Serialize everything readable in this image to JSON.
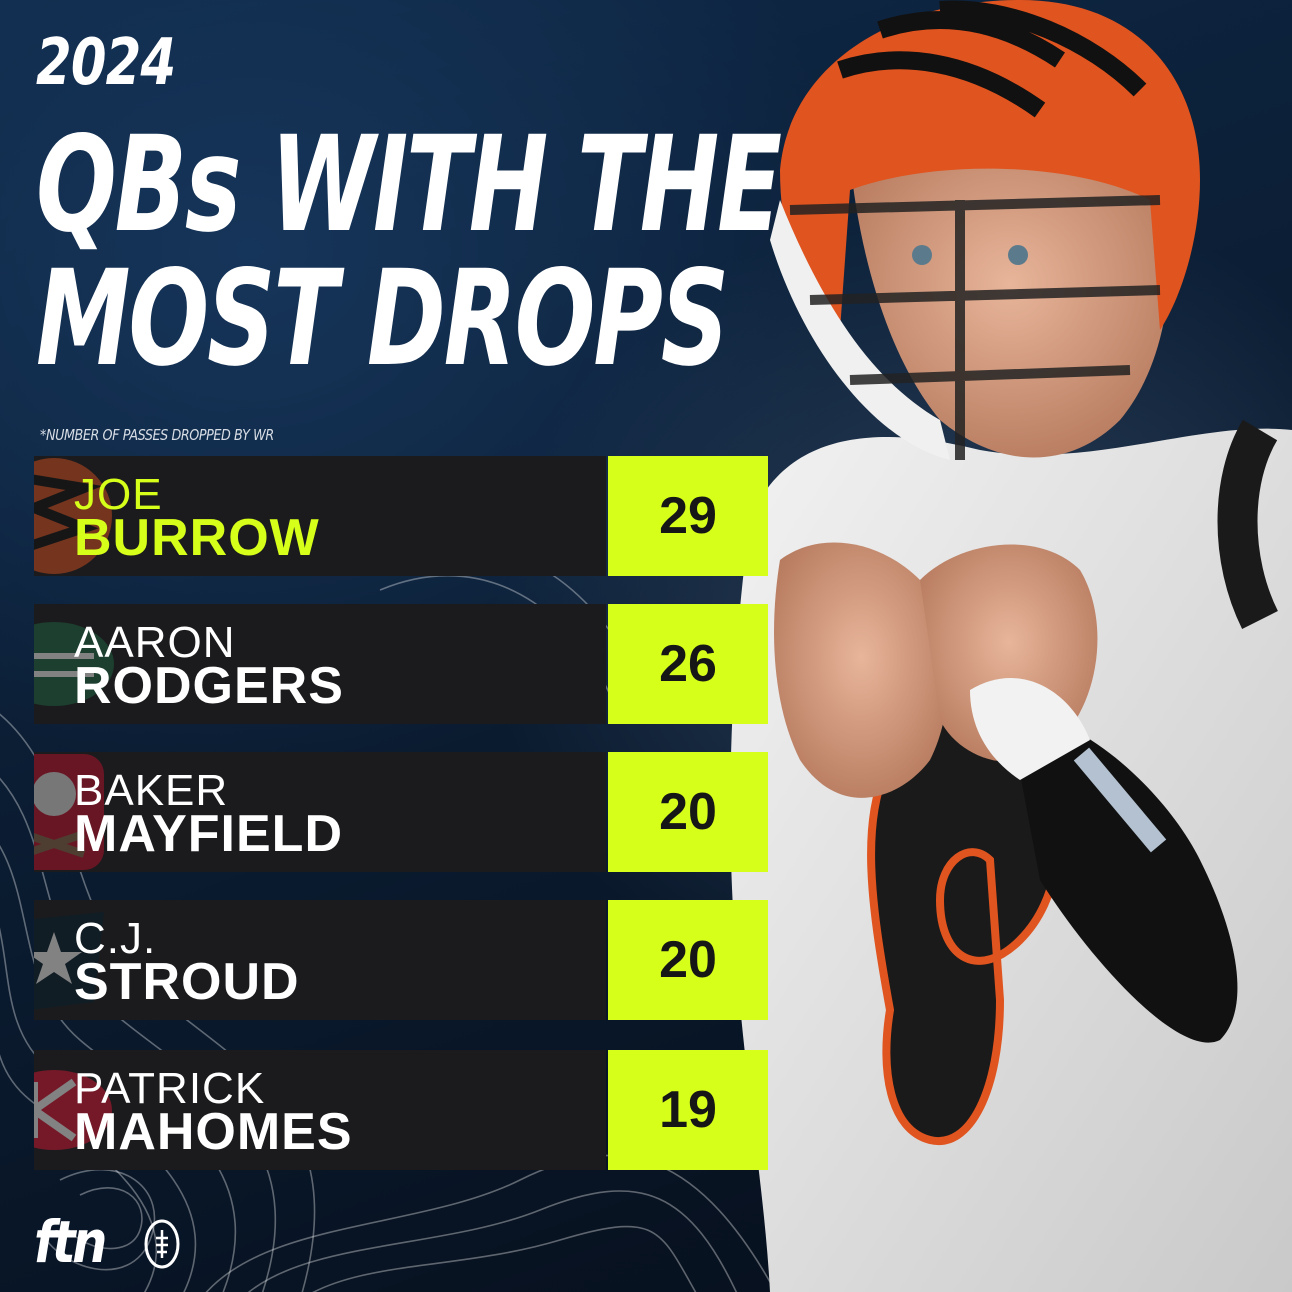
{
  "header": {
    "year": "2024",
    "title_lines": [
      "QBs WITH THE",
      "MOST DROPS"
    ],
    "footnote": "*NUMBER OF PASSES DROPPED BY WR"
  },
  "chart_data": {
    "type": "table",
    "title": "QBs WITH THE MOST DROPS",
    "subtitle": "*NUMBER OF PASSES DROPPED BY WR",
    "rows": [
      {
        "first": "JOE",
        "last": "BURROW",
        "value": 29,
        "team_logo": "bengals-logo"
      },
      {
        "first": "AARON",
        "last": "RODGERS",
        "value": 26,
        "team_logo": "jets-logo"
      },
      {
        "first": "BAKER",
        "last": "MAYFIELD",
        "value": 20,
        "team_logo": "buccaneers-logo"
      },
      {
        "first": "C.J.",
        "last": "STROUD",
        "value": 20,
        "team_logo": "texans-logo"
      },
      {
        "first": "PATRICK",
        "last": "MAHOMES",
        "value": 19,
        "team_logo": "chiefs-logo"
      }
    ]
  },
  "colors": {
    "accent": "#d6ff1a",
    "plate": "#1b1b1d",
    "background": "#0b1d33"
  },
  "brand": {
    "logo_text": "ftn",
    "icon": "football-icon"
  },
  "photo": {
    "icon": "quarterback-photo"
  }
}
